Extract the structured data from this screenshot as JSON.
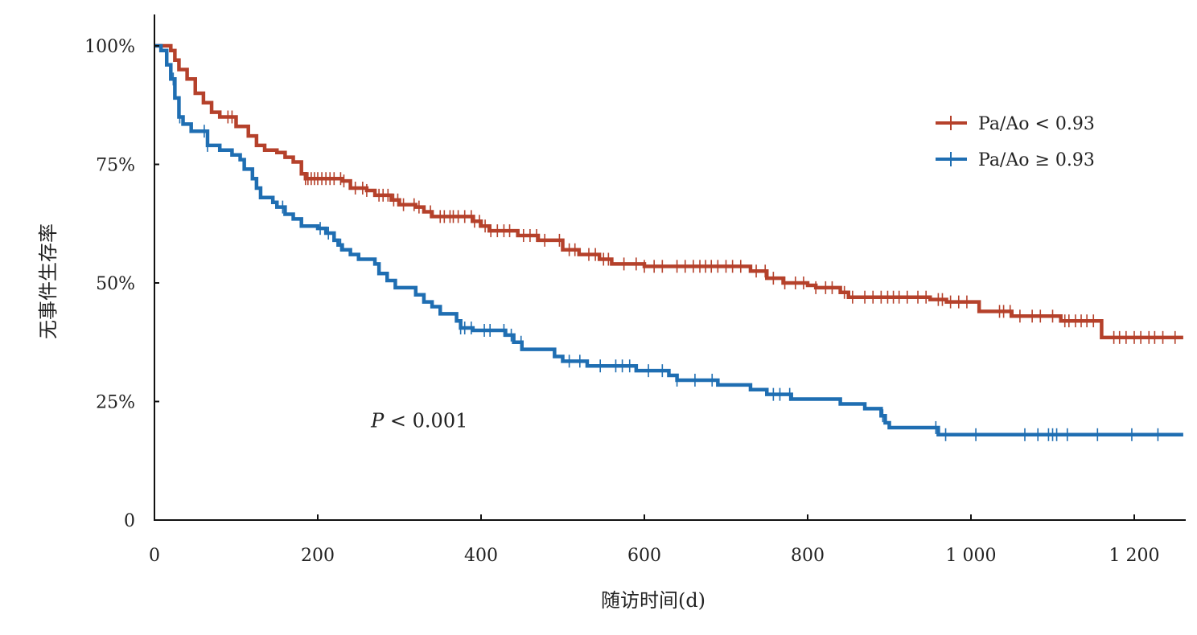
{
  "chart_data": {
    "type": "line",
    "subtype": "kaplan-meier",
    "xlabel": "随访时间(d)",
    "ylabel": "无事件生存率",
    "xlim": [
      0,
      1260
    ],
    "ylim": [
      0,
      1.06
    ],
    "x_ticks": [
      0,
      200,
      400,
      600,
      800,
      1000,
      1200
    ],
    "x_tick_labels": [
      "0",
      "200",
      "400",
      "600",
      "800",
      "1 000",
      "1 200"
    ],
    "y_ticks": [
      0,
      0.25,
      0.5,
      0.75,
      1.0
    ],
    "y_tick_labels": [
      "0",
      "25%",
      "50%",
      "75%",
      "100%"
    ],
    "annotation": {
      "prefix": "P",
      "text": " < 0.001",
      "x": 275,
      "y": 0.23
    },
    "legend_position": "top-right",
    "grid": false,
    "series": [
      {
        "name": "Pa/Ao < 0.93",
        "color": "#b5412b",
        "steps": [
          [
            0,
            1.0
          ],
          [
            12,
            1.0
          ],
          [
            20,
            0.99
          ],
          [
            25,
            0.97
          ],
          [
            30,
            0.95
          ],
          [
            40,
            0.93
          ],
          [
            50,
            0.9
          ],
          [
            60,
            0.88
          ],
          [
            70,
            0.86
          ],
          [
            80,
            0.85
          ],
          [
            95,
            0.85
          ],
          [
            100,
            0.83
          ],
          [
            115,
            0.81
          ],
          [
            125,
            0.79
          ],
          [
            135,
            0.78
          ],
          [
            150,
            0.775
          ],
          [
            160,
            0.765
          ],
          [
            170,
            0.755
          ],
          [
            180,
            0.73
          ],
          [
            185,
            0.72
          ],
          [
            230,
            0.715
          ],
          [
            240,
            0.7
          ],
          [
            260,
            0.695
          ],
          [
            270,
            0.685
          ],
          [
            290,
            0.675
          ],
          [
            300,
            0.665
          ],
          [
            320,
            0.66
          ],
          [
            330,
            0.65
          ],
          [
            340,
            0.64
          ],
          [
            390,
            0.63
          ],
          [
            400,
            0.62
          ],
          [
            410,
            0.61
          ],
          [
            445,
            0.6
          ],
          [
            470,
            0.59
          ],
          [
            500,
            0.57
          ],
          [
            520,
            0.56
          ],
          [
            545,
            0.55
          ],
          [
            560,
            0.54
          ],
          [
            600,
            0.535
          ],
          [
            730,
            0.525
          ],
          [
            750,
            0.51
          ],
          [
            770,
            0.5
          ],
          [
            800,
            0.495
          ],
          [
            810,
            0.49
          ],
          [
            840,
            0.48
          ],
          [
            850,
            0.47
          ],
          [
            950,
            0.465
          ],
          [
            970,
            0.46
          ],
          [
            1010,
            0.44
          ],
          [
            1050,
            0.43
          ],
          [
            1110,
            0.42
          ],
          [
            1160,
            0.385
          ],
          [
            1260,
            0.385
          ]
        ],
        "censored": [
          90,
          95,
          185,
          188,
          192,
          196,
          200,
          205,
          210,
          215,
          220,
          228,
          232,
          246,
          255,
          260,
          275,
          280,
          286,
          293,
          298,
          305,
          318,
          324,
          338,
          350,
          355,
          362,
          366,
          372,
          380,
          388,
          392,
          398,
          405,
          412,
          420,
          428,
          435,
          452,
          460,
          468,
          478,
          496,
          508,
          515,
          532,
          540,
          550,
          556,
          575,
          590,
          600,
          612,
          622,
          640,
          650,
          660,
          668,
          675,
          682,
          690,
          700,
          708,
          718,
          737,
          748,
          758,
          772,
          785,
          795,
          810,
          822,
          830,
          845,
          855,
          870,
          880,
          890,
          898,
          905,
          912,
          922,
          935,
          945,
          960,
          965,
          975,
          985,
          995,
          1035,
          1040,
          1048,
          1060,
          1075,
          1085,
          1100,
          1115,
          1120,
          1128,
          1135,
          1142,
          1150,
          1175,
          1182,
          1190,
          1200,
          1208,
          1218,
          1225,
          1235,
          1250
        ]
      },
      {
        "name": "Pa/Ao ≥ 0.93",
        "color": "#1f6eb2",
        "steps": [
          [
            0,
            1.0
          ],
          [
            8,
            0.99
          ],
          [
            15,
            0.96
          ],
          [
            20,
            0.93
          ],
          [
            25,
            0.89
          ],
          [
            30,
            0.85
          ],
          [
            35,
            0.835
          ],
          [
            45,
            0.82
          ],
          [
            65,
            0.79
          ],
          [
            80,
            0.78
          ],
          [
            95,
            0.77
          ],
          [
            105,
            0.76
          ],
          [
            110,
            0.74
          ],
          [
            120,
            0.72
          ],
          [
            125,
            0.7
          ],
          [
            130,
            0.68
          ],
          [
            145,
            0.67
          ],
          [
            150,
            0.66
          ],
          [
            160,
            0.645
          ],
          [
            170,
            0.635
          ],
          [
            180,
            0.62
          ],
          [
            200,
            0.615
          ],
          [
            210,
            0.605
          ],
          [
            220,
            0.59
          ],
          [
            225,
            0.58
          ],
          [
            230,
            0.57
          ],
          [
            240,
            0.56
          ],
          [
            250,
            0.55
          ],
          [
            270,
            0.54
          ],
          [
            275,
            0.52
          ],
          [
            285,
            0.505
          ],
          [
            295,
            0.49
          ],
          [
            320,
            0.475
          ],
          [
            330,
            0.46
          ],
          [
            340,
            0.45
          ],
          [
            350,
            0.435
          ],
          [
            370,
            0.42
          ],
          [
            375,
            0.405
          ],
          [
            390,
            0.4
          ],
          [
            430,
            0.39
          ],
          [
            440,
            0.375
          ],
          [
            450,
            0.36
          ],
          [
            490,
            0.345
          ],
          [
            500,
            0.335
          ],
          [
            530,
            0.325
          ],
          [
            590,
            0.315
          ],
          [
            630,
            0.305
          ],
          [
            640,
            0.295
          ],
          [
            690,
            0.285
          ],
          [
            730,
            0.275
          ],
          [
            750,
            0.265
          ],
          [
            780,
            0.255
          ],
          [
            840,
            0.245
          ],
          [
            870,
            0.235
          ],
          [
            890,
            0.22
          ],
          [
            895,
            0.205
          ],
          [
            900,
            0.195
          ],
          [
            960,
            0.18
          ],
          [
            1260,
            0.18
          ]
        ],
        "censored": [
          23,
          31,
          61,
          65,
          157,
          203,
          213,
          228,
          375,
          380,
          388,
          404,
          411,
          428,
          437,
          449,
          508,
          521,
          546,
          565,
          573,
          582,
          605,
          622,
          640,
          662,
          683,
          758,
          766,
          778,
          892,
          957,
          969,
          1006,
          1066,
          1082,
          1095,
          1100,
          1105,
          1118,
          1155,
          1197,
          1229
        ]
      }
    ]
  }
}
